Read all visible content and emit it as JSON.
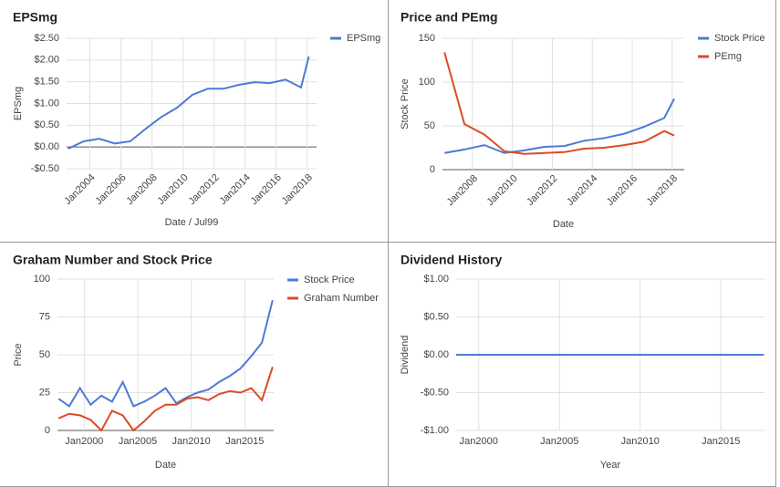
{
  "chart_data": [
    {
      "type": "line",
      "title": "EPSmg",
      "y_label": "EPSmg",
      "x_label": "Date / Jul99",
      "legend": "top-right",
      "x": [
        2002.6,
        2003.6,
        2004.6,
        2005.6,
        2006.6,
        2007.6,
        2008.6,
        2009.6,
        2010.6,
        2011.6,
        2012.6,
        2013.6,
        2014.6,
        2015.6,
        2016.6,
        2017.6,
        2018.1
      ],
      "series": [
        {
          "name": "EPSmg",
          "color": "#4e7ad6",
          "values": [
            -0.04,
            0.13,
            0.19,
            0.08,
            0.13,
            0.42,
            0.69,
            0.9,
            1.2,
            1.34,
            1.34,
            1.43,
            1.49,
            1.47,
            1.55,
            1.37,
            2.08
          ]
        }
      ],
      "xlim": [
        2002.5,
        2018.6
      ],
      "xticks": [
        {
          "value": 2004,
          "label": "Jan2004"
        },
        {
          "value": 2006,
          "label": "Jan2006"
        },
        {
          "value": 2008,
          "label": "Jan2008"
        },
        {
          "value": 2010,
          "label": "Jan2010"
        },
        {
          "value": 2012,
          "label": "Jan2012"
        },
        {
          "value": 2014,
          "label": "Jan2014"
        },
        {
          "value": 2016,
          "label": "Jan2016"
        },
        {
          "value": 2018,
          "label": "Jan2018"
        }
      ],
      "ylim": [
        -0.5,
        2.5
      ],
      "yticks": [
        {
          "value": 2.5,
          "label": "$2.50"
        },
        {
          "value": 2,
          "label": "$2.00"
        },
        {
          "value": 1.5,
          "label": "$1.50"
        },
        {
          "value": 1,
          "label": "$1.00"
        },
        {
          "value": 0.5,
          "label": "$0.50"
        },
        {
          "value": 0,
          "label": "$0.00"
        },
        {
          "value": -0.5,
          "label": "-$0.50"
        }
      ],
      "grid": true
    },
    {
      "type": "line",
      "title": "Price and PEmg",
      "y_label": "Stock Price",
      "x_label": "Date",
      "legend": "top-right",
      "x": [
        2006.6,
        2007.6,
        2008.6,
        2009.6,
        2010.6,
        2011.6,
        2012.6,
        2013.6,
        2014.6,
        2015.6,
        2016.6,
        2017.6,
        2018.1
      ],
      "series": [
        {
          "name": "Stock Price",
          "color": "#4e7ad6",
          "values": [
            19,
            23,
            28,
            19,
            22,
            26,
            27,
            33,
            36,
            41,
            49,
            59,
            81
          ]
        },
        {
          "name": "PEmg",
          "color": "#dd4b22",
          "values": [
            134,
            52,
            40,
            21,
            18,
            19,
            20,
            24,
            25,
            28,
            32,
            44,
            39
          ]
        }
      ],
      "xlim": [
        2006.5,
        2018.6
      ],
      "xticks": [
        {
          "value": 2008,
          "label": "Jan2008"
        },
        {
          "value": 2010,
          "label": "Jan2010"
        },
        {
          "value": 2012,
          "label": "Jan2012"
        },
        {
          "value": 2014,
          "label": "Jan2014"
        },
        {
          "value": 2016,
          "label": "Jan2016"
        },
        {
          "value": 2018,
          "label": "Jan2018"
        }
      ],
      "ylim": [
        0,
        150
      ],
      "yticks": [
        0,
        50,
        100,
        150
      ],
      "grid": true
    },
    {
      "type": "line",
      "title": "Graham Number and Stock Price",
      "y_label": "Price",
      "x_label": "Date",
      "legend": "top-right",
      "x": [
        1997.6,
        1998.6,
        1999.6,
        2000.6,
        2001.6,
        2002.6,
        2003.6,
        2004.6,
        2005.6,
        2006.6,
        2007.6,
        2008.6,
        2009.6,
        2010.6,
        2011.6,
        2012.6,
        2013.6,
        2014.6,
        2015.6,
        2016.6,
        2017.6
      ],
      "series": [
        {
          "name": "Stock Price",
          "color": "#4e7ad6",
          "values": [
            21,
            16,
            28,
            17,
            23,
            19,
            32,
            16,
            19,
            23,
            28,
            18,
            22,
            25,
            27,
            32,
            36,
            41,
            49,
            58,
            86
          ]
        },
        {
          "name": "Graham Number",
          "color": "#dd4b22",
          "values": [
            8,
            11,
            10,
            7,
            0,
            13,
            10,
            0,
            6,
            13,
            17,
            17,
            21,
            22,
            20,
            24,
            26,
            25,
            28,
            20,
            42
          ]
        }
      ],
      "xlim": [
        1997.5,
        2017.7
      ],
      "xticks": [
        {
          "value": 2000,
          "label": "Jan2000"
        },
        {
          "value": 2005,
          "label": "Jan2005"
        },
        {
          "value": 2010,
          "label": "Jan2010"
        },
        {
          "value": 2015,
          "label": "Jan2015"
        }
      ],
      "ylim": [
        0,
        100
      ],
      "yticks": [
        0,
        25,
        50,
        75,
        100
      ],
      "grid": true
    },
    {
      "type": "line",
      "title": "Dividend History",
      "y_label": "Dividend",
      "x_label": "Year",
      "x": [
        1998.6,
        1999.6,
        2000.6,
        2001.6,
        2002.6,
        2003.6,
        2004.6,
        2005.6,
        2006.6,
        2007.6,
        2008.6,
        2009.6,
        2010.6,
        2011.6,
        2012.6,
        2013.6,
        2014.6,
        2015.6,
        2016.6,
        2017.6
      ],
      "series": [
        {
          "color": "#4e7ad6",
          "values": [
            0,
            0,
            0,
            0,
            0,
            0,
            0,
            0,
            0,
            0,
            0,
            0,
            0,
            0,
            0,
            0,
            0,
            0,
            0,
            0
          ]
        }
      ],
      "xlim": [
        1998.6,
        2017.7
      ],
      "xticks": [
        {
          "value": 2000,
          "label": "Jan2000"
        },
        {
          "value": 2005,
          "label": "Jan2005"
        },
        {
          "value": 2010,
          "label": "Jan2010"
        },
        {
          "value": 2015,
          "label": "Jan2015"
        }
      ],
      "ylim": [
        -1,
        1
      ],
      "yticks": [
        {
          "value": 1,
          "label": "$1.00"
        },
        {
          "value": 0.5,
          "label": "$0.50"
        },
        {
          "value": 0,
          "label": "$0.00"
        },
        {
          "value": -0.5,
          "label": "-$0.50"
        },
        {
          "value": -1,
          "label": "-$1.00"
        }
      ],
      "grid": true
    }
  ]
}
